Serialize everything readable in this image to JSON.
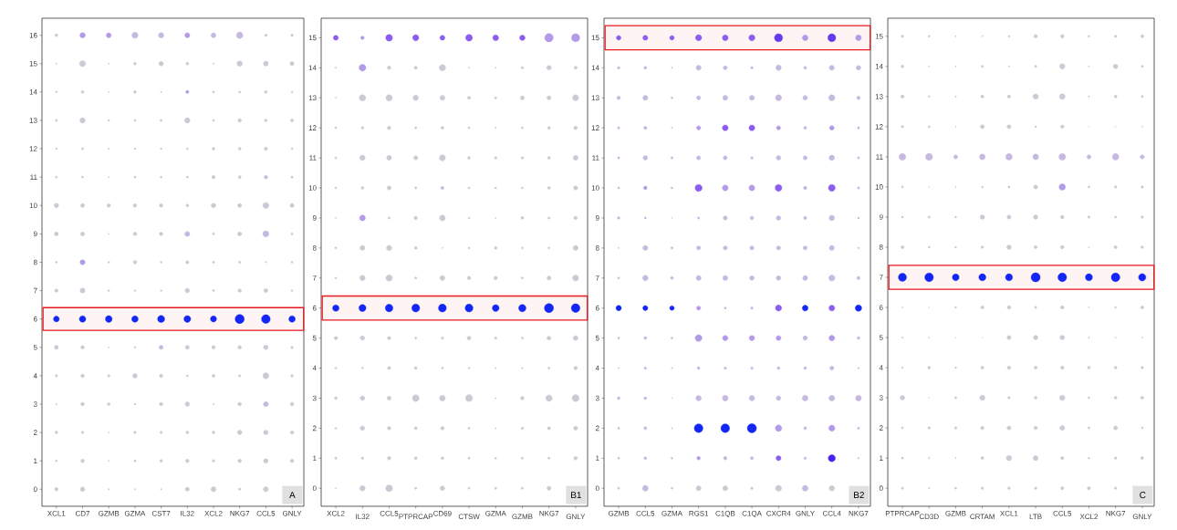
{
  "chart_data": [
    {
      "type": "bubble",
      "categories": [
        "XCL1",
        "CD7",
        "GZMB",
        "GZMA",
        "CST7",
        "IL32",
        "XCL2",
        "NKG7",
        "CCL5",
        "GNLY"
      ],
      "ylim": [
        -0.6,
        16.6
      ],
      "yticks": [
        0,
        1,
        2,
        3,
        4,
        5,
        6,
        7,
        8,
        9,
        10,
        11,
        12,
        13,
        14,
        15,
        16
      ],
      "marker": "circle",
      "bands": [
        {
          "axis": "y",
          "from": 5.6,
          "to": 6.4,
          "color": "#e8191f"
        }
      ],
      "annotations": [
        "A"
      ],
      "series": [
        {
          "values": [
            0,
            0,
            0,
            0,
            0,
            0,
            0,
            0,
            0,
            null
          ],
          "sizes": [
            0.15,
            0.25,
            0.03,
            0.03,
            0.03,
            0.2,
            0.3,
            0.06,
            0.3,
            null
          ],
          "color": "#cdc9d4"
        },
        {
          "values": [
            1,
            1,
            1,
            1,
            1,
            1,
            1,
            1,
            1,
            1
          ],
          "sizes": [
            0.05,
            0.15,
            0.02,
            0.06,
            0.1,
            0.15,
            0.08,
            0.15,
            0.25,
            0.15
          ],
          "color": "#cdc9d4"
        },
        {
          "values": [
            2,
            2,
            2,
            2,
            2,
            2,
            2,
            2,
            2,
            2
          ],
          "sizes": [
            0.1,
            0.08,
            0.02,
            0.08,
            0.08,
            0.1,
            0.1,
            0.25,
            0.25,
            0.15
          ],
          "color": "#cdc9d4"
        },
        {
          "values": [
            3,
            3,
            3,
            3,
            3,
            3,
            3,
            3,
            3,
            3
          ],
          "sizes": [
            0.03,
            0.15,
            0.1,
            0.04,
            0.15,
            0.25,
            0.03,
            0.15,
            0.3,
            0.15
          ],
          "colors": [
            "#cdc9d4",
            "#cdc9d4",
            "#cdc9d4",
            "#cdc9d4",
            "#cdc9d4",
            "#cdc9d4",
            "#cdc9d4",
            "#cdc9d4",
            "#c5b9df",
            "#cdc9d4"
          ]
        },
        {
          "values": [
            4,
            4,
            4,
            4,
            4,
            4,
            4,
            4,
            4,
            4
          ],
          "sizes": [
            0.07,
            0.15,
            0.07,
            0.25,
            0.15,
            0.05,
            0.12,
            0.06,
            0.45,
            0.08
          ],
          "color": "#cdc9d4"
        },
        {
          "values": [
            5,
            5,
            5,
            5,
            5,
            5,
            5,
            5,
            5,
            5
          ],
          "sizes": [
            0.2,
            0.15,
            0.02,
            0.04,
            0.2,
            0.2,
            0.15,
            0.15,
            0.25,
            0.08
          ],
          "colors": [
            "#cdc9d4",
            "#cdc9d4",
            "#cdc9d4",
            "#cdc9d4",
            "#c5b9df",
            "#cdc9d4",
            "#cdc9d4",
            "#cdc9d4",
            "#cdc9d4",
            "#cdc9d4"
          ]
        },
        {
          "values": [
            6,
            6,
            6,
            6,
            6,
            6,
            6,
            6,
            6,
            6
          ],
          "sizes": [
            0.4,
            0.5,
            0.55,
            0.5,
            0.6,
            0.55,
            0.45,
            1,
            0.9,
            0.5
          ],
          "color": "#1227f5"
        },
        {
          "values": [
            7,
            7,
            7,
            7,
            7,
            7,
            7,
            7,
            7,
            7
          ],
          "sizes": [
            0.15,
            0.3,
            0.04,
            0.04,
            0.04,
            0.25,
            0.06,
            0.15,
            0.2,
            0.05
          ],
          "color": "#cdc9d4"
        },
        {
          "values": [
            8,
            8,
            8,
            8,
            8,
            8,
            8,
            8,
            8,
            8
          ],
          "sizes": [
            0.05,
            0.3,
            0.04,
            0.15,
            0.04,
            0.12,
            0.06,
            0.06,
            0.03,
            0.05
          ],
          "colors": [
            "#cdc9d4",
            "#b39ae8",
            "#cdc9d4",
            "#cdc9d4",
            "#cdc9d4",
            "#cdc9d4",
            "#cdc9d4",
            "#cdc9d4",
            "#cdc9d4",
            "#cdc9d4"
          ]
        },
        {
          "values": [
            9,
            9,
            9,
            9,
            9,
            9,
            9,
            9,
            9,
            9
          ],
          "sizes": [
            0.2,
            0.2,
            0.02,
            0.15,
            0.15,
            0.3,
            0.06,
            0.2,
            0.45,
            0.06
          ],
          "colors": [
            "#cdc9d4",
            "#cdc9d4",
            "#cdc9d4",
            "#cdc9d4",
            "#cdc9d4",
            "#c5b9df",
            "#cdc9d4",
            "#cdc9d4",
            "#c5b9df",
            "#cdc9d4"
          ]
        },
        {
          "values": [
            10,
            10,
            10,
            10,
            10,
            10,
            10,
            10,
            10,
            10
          ],
          "sizes": [
            0.25,
            0.2,
            0.15,
            0.15,
            0.15,
            0.1,
            0.25,
            0.2,
            0.45,
            0.2
          ],
          "color": "#cdc9d4"
        },
        {
          "values": [
            11,
            11,
            11,
            11,
            11,
            11,
            11,
            11,
            11,
            11
          ],
          "sizes": [
            0.05,
            0.05,
            0.02,
            0.05,
            0.05,
            0.05,
            0.15,
            0.1,
            0.15,
            0.06
          ],
          "colors": [
            "#cdc9d4",
            "#cdc9d4",
            "#cdc9d4",
            "#cdc9d4",
            "#cdc9d4",
            "#cdc9d4",
            "#cdc9d4",
            "#cdc9d4",
            "#c5b9df",
            "#cdc9d4"
          ]
        },
        {
          "values": [
            12,
            12,
            12,
            12,
            12,
            12,
            12,
            12,
            12,
            12
          ],
          "sizes": [
            0.04,
            0.06,
            0.03,
            0.04,
            0.04,
            0.04,
            0.1,
            0.1,
            0.15,
            0.05
          ],
          "color": "#cdc9d4"
        },
        {
          "values": [
            13,
            13,
            13,
            13,
            13,
            13,
            13,
            13,
            13,
            13
          ],
          "sizes": [
            0.06,
            0.35,
            0.04,
            0.05,
            0.06,
            0.35,
            0.05,
            0.15,
            0.1,
            0.12
          ],
          "color": "#cdc9d4"
        },
        {
          "values": [
            14,
            14,
            14,
            14,
            14,
            14,
            14,
            14,
            14,
            14
          ],
          "sizes": [
            0.04,
            0.1,
            0.02,
            0.1,
            0.03,
            0.12,
            0.06,
            0.06,
            0.1,
            0.04
          ],
          "colors": [
            "#cdc9d4",
            "#cdc9d4",
            "#cdc9d4",
            "#cdc9d4",
            "#cdc9d4",
            "#b39ae8",
            "#cdc9d4",
            "#cdc9d4",
            "#cdc9d4",
            "#cdc9d4"
          ]
        },
        {
          "values": [
            15,
            15,
            15,
            15,
            15,
            15,
            15,
            15,
            15,
            15
          ],
          "sizes": [
            0.03,
            0.45,
            0.02,
            0.1,
            0.25,
            0.1,
            0.03,
            0.35,
            0.3,
            0.2
          ],
          "color": "#cdc9d4"
        },
        {
          "values": [
            16,
            16,
            16,
            16,
            16,
            16,
            16,
            16,
            16,
            16
          ],
          "sizes": [
            0.1,
            0.35,
            0.3,
            0.45,
            0.35,
            0.3,
            0.3,
            0.5,
            0.08,
            0.08
          ],
          "colors": [
            "#cdc9d4",
            "#b39ae8",
            "#b39ae8",
            "#c5b9df",
            "#c5b9df",
            "#b39ae8",
            "#c5b9df",
            "#c5b9df",
            "#cdc9d4",
            "#cdc9d4"
          ]
        }
      ]
    },
    {
      "type": "bubble",
      "categories": [
        "XCL2",
        "IL32",
        "CCL5",
        "PTPRCAP",
        "CD69",
        "CTSW",
        "GZMA",
        "GZMB",
        "NKG7",
        "GNLY"
      ],
      "ylim": [
        -0.6,
        15.65
      ],
      "yticks": [
        0,
        1,
        2,
        3,
        4,
        5,
        6,
        7,
        8,
        9,
        10,
        11,
        12,
        13,
        14,
        15
      ],
      "marker": "circle",
      "bands": [
        {
          "axis": "y",
          "from": 5.6,
          "to": 6.4,
          "color": "#e8191f"
        }
      ],
      "annotations": [
        "B1"
      ],
      "series": [
        {
          "values": [
            0,
            0,
            0,
            0,
            0,
            0,
            0,
            0,
            0,
            null
          ],
          "sizes": [
            0.02,
            0.35,
            0.55,
            0.06,
            0.25,
            0.05,
            0.06,
            0.06,
            0.2,
            null
          ],
          "color": "#cdc9d4"
        },
        {
          "values": [
            1,
            1,
            1,
            1,
            1,
            1,
            1,
            1,
            1,
            1
          ],
          "sizes": [
            0.06,
            0.08,
            0.15,
            0.1,
            0.1,
            0.06,
            0.05,
            0.06,
            0.06,
            0.15
          ],
          "color": "#cdc9d4"
        },
        {
          "values": [
            2,
            2,
            2,
            2,
            2,
            2,
            2,
            2,
            2,
            2
          ],
          "sizes": [
            0.04,
            0.25,
            0.15,
            0.1,
            0.15,
            0.06,
            0.02,
            0.07,
            0.12,
            0.2
          ],
          "color": "#cdc9d4"
        },
        {
          "values": [
            3,
            3,
            3,
            3,
            3,
            3,
            3,
            3,
            3,
            3
          ],
          "sizes": [
            0.1,
            0.25,
            0.2,
            0.55,
            0.4,
            0.6,
            0.02,
            0.15,
            0.5,
            0.6
          ],
          "color": "#cdc9d4"
        },
        {
          "values": [
            4,
            4,
            4,
            4,
            4,
            4,
            4,
            4,
            4,
            4
          ],
          "sizes": [
            0.04,
            0.04,
            0.12,
            0.1,
            0.05,
            0.04,
            0.03,
            0.03,
            0.06,
            0.15
          ],
          "color": "#cdc9d4"
        },
        {
          "values": [
            5,
            5,
            5,
            5,
            5,
            5,
            5,
            5,
            5,
            5
          ],
          "sizes": [
            0.15,
            0.25,
            0.15,
            0.06,
            0.08,
            0.2,
            0.07,
            0.06,
            0.2,
            0.3
          ],
          "color": "#cdc9d4"
        },
        {
          "values": [
            6,
            6,
            6,
            6,
            6,
            6,
            6,
            6,
            6,
            6
          ],
          "sizes": [
            0.5,
            0.6,
            0.7,
            0.75,
            0.75,
            0.75,
            0.55,
            0.65,
            1,
            0.9
          ],
          "color": "#1227f5"
        },
        {
          "values": [
            7,
            7,
            7,
            7,
            7,
            7,
            7,
            7,
            7,
            7
          ],
          "sizes": [
            0.05,
            0.35,
            0.5,
            0.06,
            0.3,
            0.15,
            0.15,
            0.06,
            0.2,
            0.45
          ],
          "color": "#cdc9d4"
        },
        {
          "values": [
            8,
            8,
            8,
            8,
            8,
            8,
            8,
            8,
            8,
            8
          ],
          "sizes": [
            0.05,
            0.3,
            0.35,
            0.1,
            0.02,
            0.05,
            0.1,
            0.05,
            0.05,
            0.3
          ],
          "color": "#cdc9d4"
        },
        {
          "values": [
            9,
            9,
            9,
            9,
            9,
            9,
            9,
            9,
            9,
            9
          ],
          "sizes": [
            0.02,
            0.4,
            0.06,
            0.15,
            0.4,
            0.04,
            0.02,
            0.1,
            0.06,
            0.15
          ],
          "colors": [
            "#cdc9d4",
            "#b39ae8",
            "#cdc9d4",
            "#cdc9d4",
            "#cdc9d4",
            "#cdc9d4",
            "#cdc9d4",
            "#cdc9d4",
            "#cdc9d4",
            "#cdc9d4"
          ]
        },
        {
          "values": [
            10,
            10,
            10,
            10,
            10,
            10,
            10,
            10,
            10,
            10
          ],
          "sizes": [
            0.05,
            0.1,
            0.2,
            0.06,
            0.12,
            0.05,
            0.05,
            0.05,
            0.1,
            0.2
          ],
          "colors": [
            "#cdc9d4",
            "#cdc9d4",
            "#cdc9d4",
            "#cdc9d4",
            "#c5b9df",
            "#cdc9d4",
            "#cdc9d4",
            "#cdc9d4",
            "#cdc9d4",
            "#cdc9d4"
          ]
        },
        {
          "values": [
            11,
            11,
            11,
            11,
            11,
            11,
            11,
            11,
            11,
            11
          ],
          "sizes": [
            0.05,
            0.35,
            0.3,
            0.2,
            0.45,
            0.1,
            0.08,
            0.08,
            0.1,
            0.3
          ],
          "color": "#cdc9d4"
        },
        {
          "values": [
            12,
            12,
            12,
            12,
            12,
            12,
            12,
            12,
            12,
            12
          ],
          "sizes": [
            0.05,
            0.08,
            0.15,
            0.06,
            0.1,
            0.05,
            0.03,
            0.05,
            0.1,
            0.15
          ],
          "color": "#cdc9d4"
        },
        {
          "values": [
            13,
            13,
            13,
            13,
            13,
            13,
            13,
            13,
            13,
            13
          ],
          "sizes": [
            0.02,
            0.5,
            0.5,
            0.35,
            0.3,
            0.12,
            0.06,
            0.2,
            0.2,
            0.45
          ],
          "color": "#cdc9d4"
        },
        {
          "values": [
            14,
            14,
            14,
            14,
            14,
            14,
            14,
            14,
            14,
            14
          ],
          "sizes": [
            0.03,
            0.55,
            0.15,
            0.12,
            0.5,
            0.02,
            0.02,
            0.08,
            0.25,
            0.12
          ],
          "colors": [
            "#cdc9d4",
            "#b39ae8",
            "#cdc9d4",
            "#cdc9d4",
            "#cdc9d4",
            "#cdc9d4",
            "#cdc9d4",
            "#cdc9d4",
            "#cdc9d4",
            "#cdc9d4"
          ]
        },
        {
          "values": [
            15,
            15,
            15,
            15,
            15,
            15,
            15,
            15,
            15,
            15
          ],
          "sizes": [
            0.3,
            0.15,
            0.55,
            0.45,
            0.3,
            0.55,
            0.4,
            0.35,
            0.85,
            0.8
          ],
          "colors": [
            "#8c5bef",
            "#b39ae8",
            "#8c5bef",
            "#8c5bef",
            "#8c5bef",
            "#8c5bef",
            "#8c5bef",
            "#8c5bef",
            "#b39ae8",
            "#b39ae8"
          ]
        }
      ]
    },
    {
      "type": "bubble",
      "categories": [
        "GZMB",
        "CCL5",
        "GZMA",
        "RGS1",
        "C1QB",
        "C1QA",
        "CXCR4",
        "GNLY",
        "CCL4",
        "NKG7"
      ],
      "ylim": [
        -0.6,
        15.65
      ],
      "yticks": [
        0,
        1,
        2,
        3,
        4,
        5,
        6,
        7,
        8,
        9,
        10,
        11,
        12,
        13,
        14,
        15
      ],
      "marker": "circle",
      "bands": [
        {
          "axis": "y",
          "from": 14.6,
          "to": 15.4,
          "color": "#e8191f"
        }
      ],
      "annotations": [
        "B2"
      ],
      "series": [
        {
          "values": [
            0,
            0,
            0,
            0,
            0,
            0,
            0,
            0,
            0,
            null
          ],
          "sizes": [
            0.06,
            0.4,
            0.05,
            0.3,
            0.3,
            0.08,
            0.45,
            0.4,
            0.35,
            null
          ],
          "colors": [
            "#cdc9d4",
            "#c5b9df",
            "#cdc9d4",
            "#cdc9d4",
            "#cdc9d4",
            "#cdc9d4",
            "#cdc9d4",
            "#c5b9df",
            "#cdc9d4",
            "#cdc9d4"
          ]
        },
        {
          "values": [
            1,
            1,
            1,
            1,
            1,
            1,
            1,
            1,
            1,
            1
          ],
          "sizes": [
            0.04,
            0.1,
            0.04,
            0.15,
            0.15,
            0.12,
            0.3,
            0.08,
            0.6,
            0.03
          ],
          "colors": [
            "#c5b9df",
            "#c5b9df",
            "#c5b9df",
            "#b39ae8",
            "#c5b9df",
            "#c5b9df",
            "#8c5bef",
            "#c5b9df",
            "#4a20f0",
            "#c5b9df"
          ]
        },
        {
          "values": [
            2,
            2,
            2,
            2,
            2,
            2,
            2,
            2,
            2,
            2
          ],
          "sizes": [
            0.05,
            0.1,
            0.02,
            0.9,
            0.9,
            1,
            0.5,
            0.1,
            0.45,
            0.06
          ],
          "colors": [
            "#c5b9df",
            "#c5b9df",
            "#c5b9df",
            "#1227f5",
            "#1227f5",
            "#1227f5",
            "#b39ae8",
            "#c5b9df",
            "#b39ae8",
            "#c5b9df"
          ]
        },
        {
          "values": [
            3,
            3,
            3,
            3,
            3,
            3,
            3,
            3,
            3,
            3
          ],
          "sizes": [
            0.1,
            0.1,
            0.01,
            0.35,
            0.4,
            0.35,
            0.25,
            0.4,
            0.4,
            0.4
          ],
          "color": "#c5b9df"
        },
        {
          "values": [
            4,
            4,
            4,
            4,
            4,
            4,
            4,
            4,
            4,
            4
          ],
          "sizes": [
            0.02,
            0.08,
            0.02,
            0.1,
            0.08,
            0.08,
            0.1,
            0.1,
            0.2,
            0.03
          ],
          "color": "#c5b9df"
        },
        {
          "values": [
            5,
            5,
            5,
            5,
            5,
            5,
            5,
            5,
            5,
            5
          ],
          "sizes": [
            0.05,
            0.1,
            0.05,
            0.55,
            0.35,
            0.35,
            0.3,
            0.25,
            0.4,
            0.1
          ],
          "colors": [
            "#c5b9df",
            "#c5b9df",
            "#c5b9df",
            "#b39ae8",
            "#b39ae8",
            "#b39ae8",
            "#b39ae8",
            "#c5b9df",
            "#b39ae8",
            "#c5b9df"
          ]
        },
        {
          "values": [
            6,
            6,
            6,
            6,
            6,
            6,
            6,
            6,
            6,
            6
          ],
          "sizes": [
            0.35,
            0.3,
            0.25,
            0.2,
            0.05,
            0.07,
            0.45,
            0.4,
            0.4,
            0.5
          ],
          "colors": [
            "#1227f5",
            "#1227f5",
            "#1227f5",
            "#b39ae8",
            "#c5b9df",
            "#c5b9df",
            "#8c5bef",
            "#1227f5",
            "#8c5bef",
            "#1227f5"
          ]
        },
        {
          "values": [
            7,
            7,
            7,
            7,
            7,
            7,
            7,
            7,
            7,
            7
          ],
          "sizes": [
            0.05,
            0.35,
            0.1,
            0.3,
            0.3,
            0.25,
            0.25,
            0.3,
            0.45,
            0.12
          ],
          "color": "#c5b9df"
        },
        {
          "values": [
            8,
            8,
            8,
            8,
            8,
            8,
            8,
            8,
            8,
            8
          ],
          "sizes": [
            0.02,
            0.3,
            0.06,
            0.2,
            0.2,
            0.2,
            0.2,
            0.2,
            0.3,
            0.03
          ],
          "color": "#c5b9df"
        },
        {
          "values": [
            9,
            9,
            9,
            9,
            9,
            9,
            9,
            9,
            9,
            9
          ],
          "sizes": [
            0.08,
            0.05,
            0.01,
            0.06,
            0.2,
            0.15,
            0.25,
            0.12,
            0.35,
            0.04
          ],
          "color": "#c5b9df"
        },
        {
          "values": [
            10,
            10,
            10,
            10,
            10,
            10,
            10,
            10,
            10,
            10
          ],
          "sizes": [
            0.05,
            0.15,
            0.04,
            0.6,
            0.4,
            0.4,
            0.55,
            0.15,
            0.55,
            0.06
          ],
          "colors": [
            "#c5b9df",
            "#b39ae8",
            "#c5b9df",
            "#8c5bef",
            "#b39ae8",
            "#b39ae8",
            "#8c5bef",
            "#c5b9df",
            "#8c5bef",
            "#c5b9df"
          ]
        },
        {
          "values": [
            11,
            11,
            11,
            11,
            11,
            11,
            11,
            11,
            11,
            11
          ],
          "sizes": [
            0.06,
            0.25,
            0.06,
            0.2,
            0.2,
            0.08,
            0.25,
            0.2,
            0.35,
            0.06
          ],
          "color": "#c5b9df"
        },
        {
          "values": [
            12,
            12,
            12,
            12,
            12,
            12,
            12,
            12,
            12,
            12
          ],
          "sizes": [
            0.06,
            0.12,
            0.02,
            0.2,
            0.4,
            0.4,
            0.2,
            0.1,
            0.25,
            0.06
          ],
          "colors": [
            "#c5b9df",
            "#c5b9df",
            "#c5b9df",
            "#b39ae8",
            "#8c5bef",
            "#8c5bef",
            "#b39ae8",
            "#c5b9df",
            "#b39ae8",
            "#c5b9df"
          ]
        },
        {
          "values": [
            13,
            13,
            13,
            13,
            13,
            13,
            13,
            13,
            13,
            13
          ],
          "sizes": [
            0.15,
            0.3,
            0.04,
            0.2,
            0.3,
            0.3,
            0.45,
            0.25,
            0.45,
            0.15
          ],
          "color": "#c5b9df"
        },
        {
          "values": [
            14,
            14,
            14,
            14,
            14,
            14,
            14,
            14,
            14,
            14
          ],
          "sizes": [
            0.08,
            0.1,
            0.02,
            0.3,
            0.2,
            0.08,
            0.35,
            0.1,
            0.3,
            0.25
          ],
          "color": "#c5b9df"
        },
        {
          "values": [
            15,
            15,
            15,
            15,
            15,
            15,
            15,
            15,
            15,
            15
          ],
          "sizes": [
            0.25,
            0.3,
            0.25,
            0.45,
            0.4,
            0.45,
            0.8,
            0.4,
            0.75,
            0.4
          ],
          "colors": [
            "#8c5bef",
            "#8c5bef",
            "#8c5bef",
            "#8c5bef",
            "#8c5bef",
            "#8c5bef",
            "#6639f0",
            "#b39ae8",
            "#6639f0",
            "#b39ae8"
          ]
        }
      ]
    },
    {
      "type": "bubble",
      "categories": [
        "PTPRCAP",
        "CD3D",
        "GZMB",
        "CRTAM",
        "XCL1",
        "LTB",
        "CCL5",
        "XCL2",
        "NKG7",
        "GNLY"
      ],
      "ylim": [
        -0.6,
        15.6
      ],
      "yticks": [
        0,
        1,
        2,
        3,
        4,
        5,
        6,
        7,
        8,
        9,
        10,
        11,
        12,
        13,
        14,
        15
      ],
      "marker": "circle",
      "bands": [
        {
          "axis": "y",
          "from": 6.6,
          "to": 7.4,
          "color": "#e8191f"
        }
      ],
      "annotations": [
        "C"
      ],
      "series": [
        {
          "values": [
            0,
            0,
            0,
            0,
            0,
            0,
            0,
            0,
            0,
            null
          ],
          "sizes": [
            0.06,
            0.03,
            0.05,
            0.08,
            0.08,
            0.08,
            0.12,
            0.12,
            0.07,
            null
          ],
          "color": "#cdc9d4"
        },
        {
          "values": [
            1,
            1,
            1,
            1,
            1,
            1,
            1,
            1,
            1,
            1
          ],
          "sizes": [
            0.06,
            0.03,
            0.02,
            0.1,
            0.35,
            0.3,
            0.12,
            0.04,
            0.08,
            0.1
          ],
          "color": "#cdc9d4"
        },
        {
          "values": [
            2,
            2,
            2,
            2,
            2,
            2,
            2,
            2,
            2,
            2
          ],
          "sizes": [
            0.05,
            0.08,
            0.08,
            0.15,
            0.2,
            0.15,
            0.3,
            0.06,
            0.2,
            0.05
          ],
          "color": "#cdc9d4"
        },
        {
          "values": [
            3,
            3,
            3,
            3,
            3,
            3,
            3,
            3,
            3,
            3
          ],
          "sizes": [
            0.25,
            0.01,
            0.06,
            0.35,
            0.08,
            0.1,
            0.35,
            0.05,
            0.1,
            0.12
          ],
          "color": "#cdc9d4"
        },
        {
          "values": [
            4,
            4,
            4,
            4,
            4,
            4,
            4,
            4,
            4,
            4
          ],
          "sizes": [
            0.04,
            0.1,
            0.04,
            0.12,
            0.15,
            0.12,
            0.15,
            0.1,
            0.1,
            0.08
          ],
          "color": "#cdc9d4"
        },
        {
          "values": [
            5,
            5,
            5,
            5,
            5,
            5,
            5,
            5,
            5,
            5
          ],
          "sizes": [
            0.03,
            0.02,
            0.01,
            0.01,
            0.2,
            0.25,
            0.25,
            0.03,
            0.02,
            0.02
          ],
          "color": "#cdc9d4"
        },
        {
          "values": [
            6,
            6,
            6,
            6,
            6,
            6,
            6,
            6,
            6,
            6
          ],
          "sizes": [
            0.02,
            0.01,
            0.04,
            0.12,
            0.15,
            0.06,
            0.15,
            0.02,
            0.04,
            0.12
          ],
          "color": "#cdc9d4"
        },
        {
          "values": [
            7,
            7,
            7,
            7,
            7,
            7,
            7,
            7,
            7,
            7
          ],
          "sizes": [
            0.8,
            0.9,
            0.55,
            0.6,
            0.6,
            1,
            0.9,
            0.6,
            0.9,
            0.65
          ],
          "color": "#1227f5"
        },
        {
          "values": [
            8,
            8,
            8,
            8,
            8,
            8,
            8,
            8,
            8,
            8
          ],
          "sizes": [
            0.12,
            0.05,
            0.04,
            0.08,
            0.25,
            0.12,
            0.15,
            0.02,
            0.12,
            0.08
          ],
          "color": "#cdc9d4"
        },
        {
          "values": [
            9,
            9,
            9,
            9,
            9,
            9,
            9,
            9,
            9,
            9
          ],
          "sizes": [
            0.05,
            0.06,
            0.04,
            0.25,
            0.2,
            0.25,
            0.15,
            0.07,
            0.05,
            0.08
          ],
          "color": "#cdc9d4"
        },
        {
          "values": [
            10,
            10,
            10,
            10,
            10,
            10,
            10,
            10,
            10,
            10
          ],
          "sizes": [
            0.05,
            0.01,
            0.02,
            0.04,
            0.06,
            0.2,
            0.5,
            0.05,
            0.08,
            0.08
          ],
          "colors": [
            "#cdc9d4",
            "#cdc9d4",
            "#cdc9d4",
            "#cdc9d4",
            "#cdc9d4",
            "#cdc9d4",
            "#b39ae8",
            "#cdc9d4",
            "#cdc9d4",
            "#cdc9d4"
          ]
        },
        {
          "values": [
            11,
            11,
            11,
            11,
            11,
            11,
            11,
            11,
            11,
            11
          ],
          "sizes": [
            0.55,
            0.6,
            0.2,
            0.4,
            0.5,
            0.4,
            0.55,
            0.2,
            0.5,
            0.2
          ],
          "color": "#c5b9df"
        },
        {
          "values": [
            12,
            12,
            12,
            12,
            12,
            12,
            12,
            12,
            12,
            12
          ],
          "sizes": [
            0.08,
            0.06,
            0.02,
            0.2,
            0.2,
            0.04,
            0.15,
            0.01,
            0.01,
            0.02
          ],
          "color": "#cdc9d4"
        },
        {
          "values": [
            13,
            13,
            13,
            13,
            13,
            13,
            13,
            13,
            13,
            13
          ],
          "sizes": [
            0.15,
            0.04,
            0.03,
            0.12,
            0.12,
            0.35,
            0.4,
            0.03,
            0.1,
            0.06
          ],
          "color": "#cdc9d4"
        },
        {
          "values": [
            14,
            14,
            14,
            14,
            14,
            14,
            14,
            14,
            14,
            14
          ],
          "sizes": [
            0.1,
            0.02,
            0.02,
            0.06,
            0.02,
            0.06,
            0.35,
            0.02,
            0.25,
            0.06
          ],
          "color": "#cdc9d4"
        },
        {
          "values": [
            15,
            15,
            15,
            15,
            15,
            15,
            15,
            15,
            15,
            15
          ],
          "sizes": [
            0.08,
            0.05,
            0.02,
            0.02,
            0.04,
            0.15,
            0.15,
            0.05,
            0.08,
            0.12
          ],
          "color": "#cdc9d4"
        }
      ]
    }
  ]
}
